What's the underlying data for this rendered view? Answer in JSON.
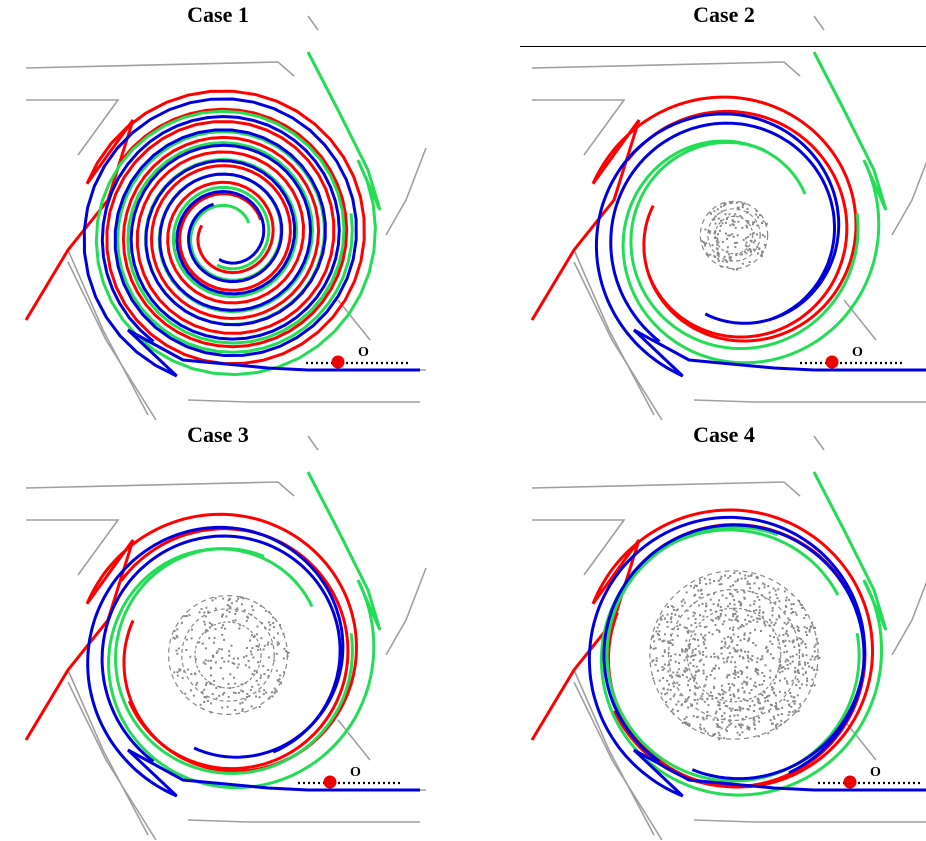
{
  "panels": [
    {
      "title": "Case 1",
      "point_label": "O",
      "center_region": "hole"
    },
    {
      "title": "Case 2",
      "point_label": "O",
      "center_region": "small"
    },
    {
      "title": "Case 3",
      "point_label": "O",
      "center_region": "medium"
    },
    {
      "title": "Case 4",
      "point_label": "O",
      "center_region": "large"
    }
  ],
  "colors": {
    "red": "#ff0000",
    "green": "#22dd55",
    "blue": "#0000dd",
    "boundary": "#a0a0a0",
    "core": "#888888",
    "marker": "#ee0000"
  }
}
